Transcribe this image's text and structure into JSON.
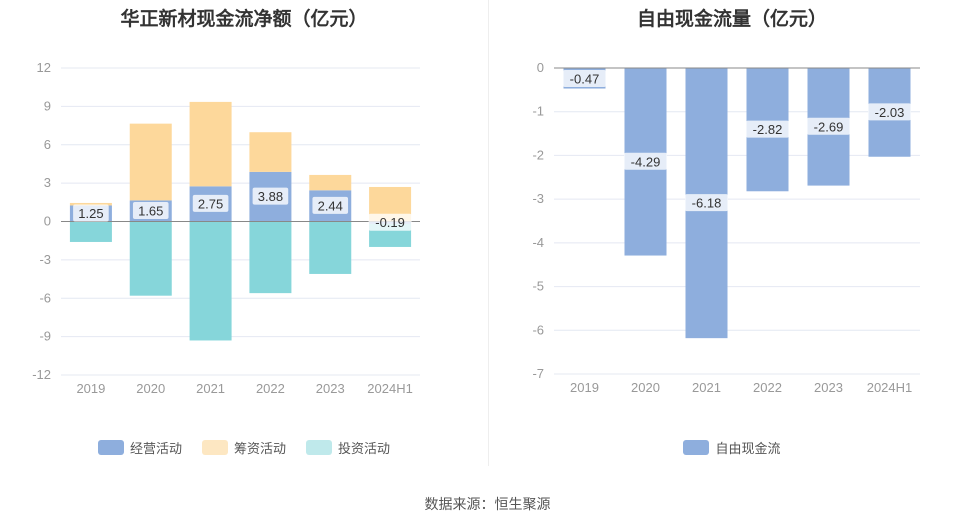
{
  "source_label": "数据来源：恒生聚源",
  "colors": {
    "operating": "#8eaedd",
    "financing": "#fdd89b",
    "investing": "#86d6da",
    "fcf": "#8eaedd",
    "grid": "#e4e8f2",
    "axis": "#999999"
  },
  "chart_data": [
    {
      "type": "bar",
      "title": "华正新材现金流净额（亿元）",
      "categories": [
        "2019",
        "2020",
        "2021",
        "2022",
        "2023",
        "2024H1"
      ],
      "ylim": [
        -12,
        12
      ],
      "yticks": [
        12,
        9,
        6,
        3,
        0,
        -3,
        -6,
        -9,
        -12
      ],
      "stacked": true,
      "legend_position": "bottom",
      "series": [
        {
          "name": "经营活动",
          "key": "operating",
          "values": [
            1.25,
            1.65,
            2.75,
            3.88,
            2.44,
            -0.19
          ]
        },
        {
          "name": "筹资活动",
          "key": "financing",
          "values": [
            0.2,
            6.0,
            6.6,
            3.1,
            1.2,
            2.7
          ]
        },
        {
          "name": "投资活动",
          "key": "investing",
          "values": [
            -1.6,
            -5.8,
            -9.3,
            -5.6,
            -4.1,
            -1.8
          ]
        }
      ],
      "data_labels": [
        "1.25",
        "1.65",
        "2.75",
        "3.88",
        "2.44",
        "-0.19"
      ]
    },
    {
      "type": "bar",
      "title": "自由现金流量（亿元）",
      "categories": [
        "2019",
        "2020",
        "2021",
        "2022",
        "2023",
        "2024H1"
      ],
      "ylim": [
        -7,
        0
      ],
      "yticks": [
        0,
        -1,
        -2,
        -3,
        -4,
        -5,
        -6,
        -7
      ],
      "legend_position": "bottom",
      "series": [
        {
          "name": "自由现金流",
          "key": "fcf",
          "values": [
            -0.47,
            -4.29,
            -6.18,
            -2.82,
            -2.69,
            -2.03
          ]
        }
      ],
      "data_labels": [
        "-0.47",
        "-4.29",
        "-6.18",
        "-2.82",
        "-2.69",
        "-2.03"
      ]
    }
  ]
}
